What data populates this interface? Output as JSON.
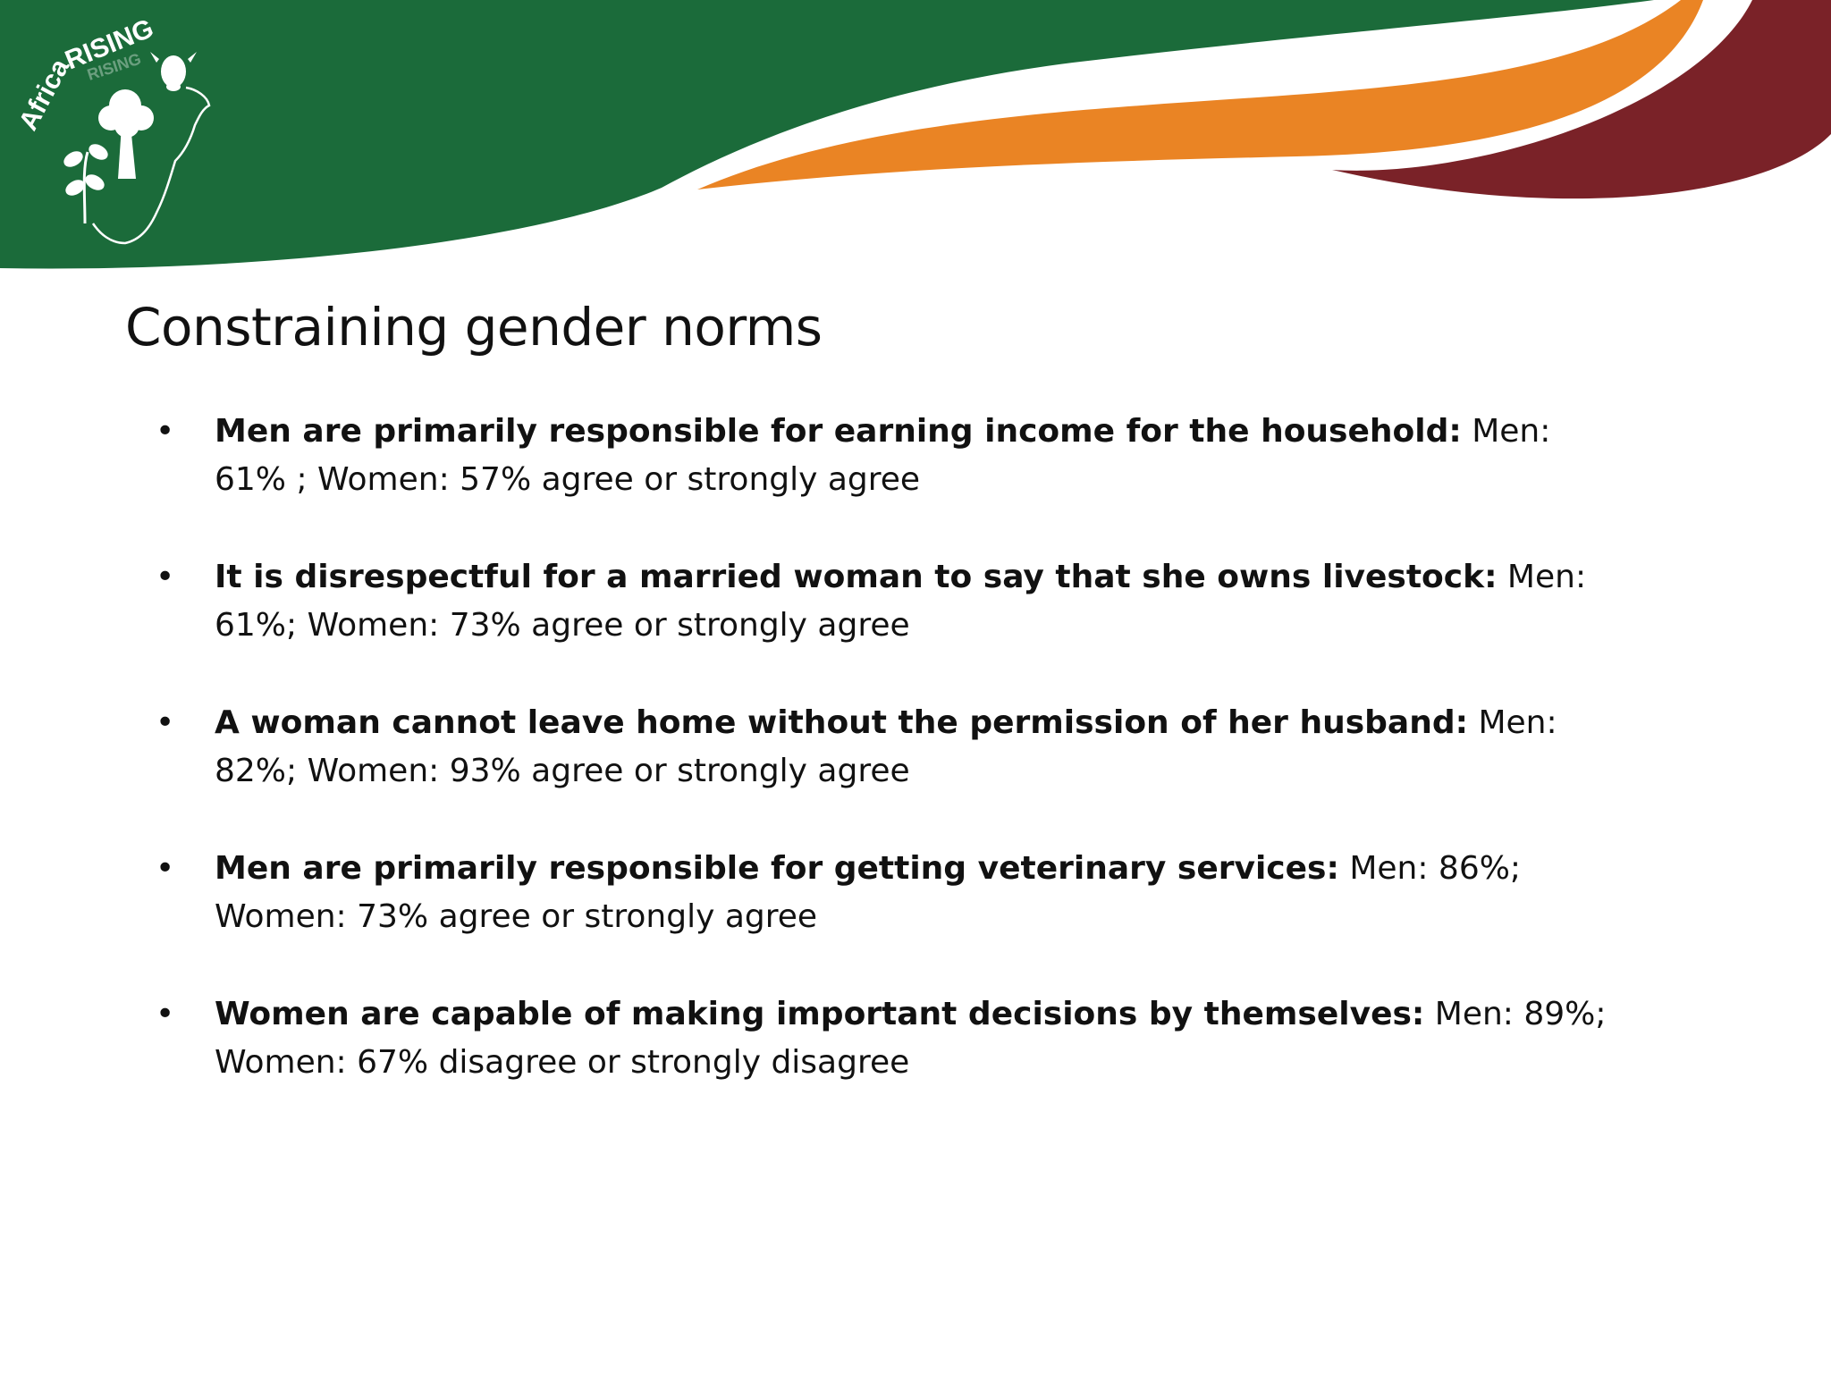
{
  "logo": {
    "text_africa": "Africa",
    "text_rising": "RISING",
    "icons": [
      "cow-head-icon",
      "tree-icon",
      "seedling-icon",
      "africa-map-outline-icon"
    ]
  },
  "colors": {
    "green": "#1b6b3a",
    "orange": "#ea8424",
    "maroon": "#7a2228",
    "text": "#111111"
  },
  "slide": {
    "title": "Constraining gender norms",
    "bullets": [
      {
        "statement": "Men are primarily responsible for earning income for the household:",
        "result": " Men: 61% ; Women: 57% agree or strongly agree"
      },
      {
        "statement": "It is disrespectful for a married woman to say that she owns livestock:",
        "result": " Men: 61%; Women: 73% agree or strongly agree"
      },
      {
        "statement": "A woman cannot leave home without the permission of her husband:",
        "result": " Men: 82%; Women: 93% agree or strongly agree"
      },
      {
        "statement": "Men are primarily responsible for getting veterinary services:",
        "result": " Men: 86%; Women: 73% agree or strongly agree"
      },
      {
        "statement": "Women are capable of making important decisions by themselves:",
        "result": " Men: 89%; Women: 67% disagree or strongly disagree"
      }
    ]
  }
}
